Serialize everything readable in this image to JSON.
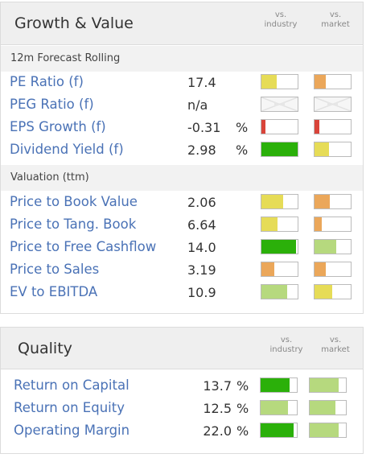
{
  "growth": {
    "title": "Growth & Value",
    "col_industry": "vs.\nindustry",
    "col_market": "vs.\nmarket",
    "forecast_section": "12m Forecast Rolling",
    "valuation_section": "Valuation (ttm)",
    "forecast_rows": [
      {
        "label": "PE Ratio (f)",
        "value": "17.4",
        "unit": "",
        "industry": {
          "level": 0.42,
          "color": "#e6dc57"
        },
        "market": {
          "level": 0.3,
          "color": "#eba75a"
        }
      },
      {
        "label": "PEG Ratio (f)",
        "value": "n/a",
        "unit": "",
        "industry": {
          "level": null,
          "color": ""
        },
        "market": {
          "level": null,
          "color": ""
        }
      },
      {
        "label": "EPS Growth (f)",
        "value": "-0.31",
        "unit": "%",
        "industry": {
          "level": 0.12,
          "color": "#d9443a"
        },
        "market": {
          "level": 0.14,
          "color": "#d9443a"
        }
      },
      {
        "label": "Dividend Yield (f)",
        "value": "2.98",
        "unit": "%",
        "industry": {
          "level": 1.0,
          "color": "#2bb00a"
        },
        "market": {
          "level": 0.4,
          "color": "#e6dc57"
        }
      }
    ],
    "valuation_rows": [
      {
        "label": "Price to Book Value",
        "value": "2.06",
        "unit": "",
        "industry": {
          "level": 0.6,
          "color": "#e6dc57"
        },
        "market": {
          "level": 0.42,
          "color": "#eba75a"
        }
      },
      {
        "label": "Price to Tang. Book",
        "value": "6.64",
        "unit": "",
        "industry": {
          "level": 0.45,
          "color": "#e6dc57"
        },
        "market": {
          "level": 0.2,
          "color": "#eba75a"
        }
      },
      {
        "label": "Price to Free Cashflow",
        "value": "14.0",
        "unit": "",
        "industry": {
          "level": 0.95,
          "color": "#2bb00a"
        },
        "market": {
          "level": 0.6,
          "color": "#b6d97e"
        }
      },
      {
        "label": "Price to Sales",
        "value": "3.19",
        "unit": "",
        "industry": {
          "level": 0.36,
          "color": "#eba75a"
        },
        "market": {
          "level": 0.3,
          "color": "#eba75a"
        }
      },
      {
        "label": "EV to EBITDA",
        "value": "10.9",
        "unit": "",
        "industry": {
          "level": 0.72,
          "color": "#b6d97e"
        },
        "market": {
          "level": 0.48,
          "color": "#e6dc57"
        }
      }
    ]
  },
  "quality": {
    "title": "Quality",
    "col_industry": "vs.\nindustry",
    "col_market": "vs.\nmarket",
    "rows": [
      {
        "label": "Return on Capital",
        "value": "13.7",
        "unit": "%",
        "industry": {
          "level": 0.8,
          "color": "#2bb00a"
        },
        "market": {
          "level": 0.8,
          "color": "#b6d97e"
        }
      },
      {
        "label": "Return on Equity",
        "value": "12.5",
        "unit": "%",
        "industry": {
          "level": 0.75,
          "color": "#b6d97e"
        },
        "market": {
          "level": 0.7,
          "color": "#b6d97e"
        }
      },
      {
        "label": "Operating Margin",
        "value": "22.0",
        "unit": "%",
        "industry": {
          "level": 0.92,
          "color": "#2bb00a"
        },
        "market": {
          "level": 0.8,
          "color": "#b6d97e"
        }
      }
    ]
  }
}
